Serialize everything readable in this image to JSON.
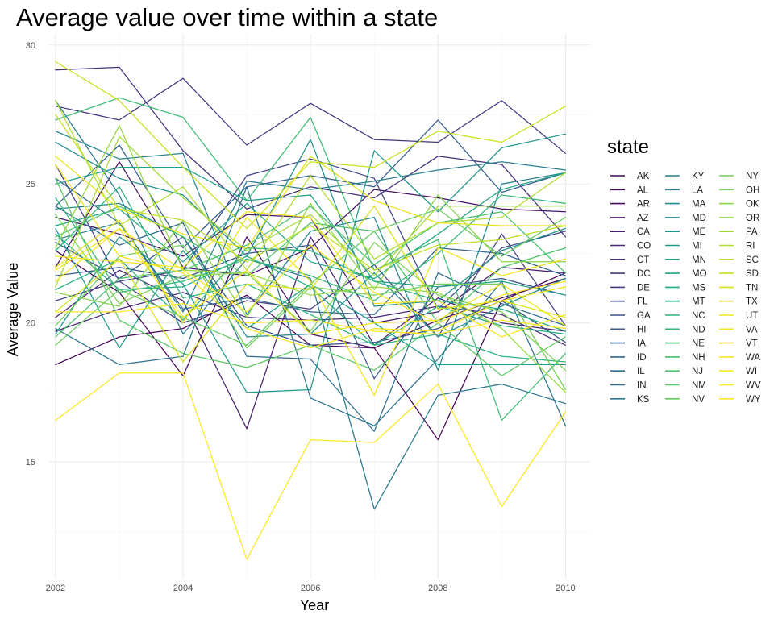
{
  "chart_data": {
    "type": "line",
    "title": "Average value over time within a state",
    "xlabel": "Year",
    "ylabel": "Average Value",
    "x": [
      2002,
      2003,
      2004,
      2005,
      2006,
      2007,
      2008,
      2009,
      2010
    ],
    "xlim": [
      2001.9,
      2010.4
    ],
    "ylim": [
      10.8,
      30.4
    ],
    "x_ticks": [
      2002,
      2004,
      2006,
      2008,
      2010
    ],
    "y_ticks": [
      15,
      20,
      25,
      30
    ],
    "grid": true,
    "legend_title": "state",
    "legend_position": "right",
    "colormap": "viridis",
    "series": [
      {
        "name": "AK",
        "color": "#440154",
        "values": [
          18.5,
          19.5,
          19.8,
          21.0,
          19.2,
          19.1,
          15.8,
          20.8,
          21.8
        ]
      },
      {
        "name": "AL",
        "color": "#46085c",
        "values": [
          22.6,
          21.1,
          18.1,
          23.1,
          19.6,
          19.1,
          20.1,
          20.9,
          21.6
        ]
      },
      {
        "name": "AR",
        "color": "#471063",
        "values": [
          22.0,
          25.8,
          22.0,
          21.7,
          22.7,
          24.8,
          24.5,
          24.1,
          24.0
        ]
      },
      {
        "name": "AZ",
        "color": "#48186a",
        "values": [
          23.8,
          23.2,
          22.4,
          23.9,
          23.8,
          20.0,
          20.4,
          22.0,
          21.8
        ]
      },
      {
        "name": "CA",
        "color": "#482071",
        "values": [
          20.2,
          21.9,
          20.8,
          16.2,
          23.1,
          19.2,
          20.9,
          20.0,
          19.7
        ]
      },
      {
        "name": "CO",
        "color": "#472776",
        "values": [
          19.7,
          20.5,
          21.1,
          20.2,
          20.1,
          20.2,
          20.6,
          20.3,
          19.2
        ]
      },
      {
        "name": "CT",
        "color": "#462f7c",
        "values": [
          29.1,
          29.2,
          26.2,
          24.1,
          24.9,
          24.5,
          26.0,
          25.7,
          23.1
        ]
      },
      {
        "name": "DC",
        "color": "#443781",
        "values": [
          27.8,
          27.3,
          28.8,
          26.4,
          27.9,
          26.6,
          26.5,
          28.0,
          26.1
        ]
      },
      {
        "name": "DE",
        "color": "#423e85",
        "values": [
          25.7,
          21.5,
          20.0,
          20.8,
          20.5,
          22.1,
          19.5,
          23.2,
          19.9
        ]
      },
      {
        "name": "FL",
        "color": "#3f4788",
        "values": [
          20.8,
          21.5,
          21.9,
          25.3,
          25.9,
          25.2,
          20.5,
          22.7,
          23.3
        ]
      },
      {
        "name": "GA",
        "color": "#3c4f8a",
        "values": [
          22.9,
          21.6,
          23.1,
          19.9,
          19.2,
          19.3,
          19.8,
          20.8,
          19.3
        ]
      },
      {
        "name": "HI",
        "color": "#39558c",
        "values": [
          21.7,
          22.0,
          21.6,
          22.5,
          22.8,
          18.0,
          21.3,
          21.6,
          21.0
        ]
      },
      {
        "name": "IA",
        "color": "#355e8d",
        "values": [
          24.2,
          26.4,
          22.7,
          24.9,
          25.3,
          24.9,
          27.3,
          24.7,
          25.4
        ]
      },
      {
        "name": "ID",
        "color": "#32648e",
        "values": [
          25.2,
          23.6,
          20.5,
          20.9,
          20.4,
          20.3,
          22.7,
          22.5,
          21.7
        ]
      },
      {
        "name": "IL",
        "color": "#2f6b8e",
        "values": [
          24.2,
          22.8,
          23.6,
          18.8,
          18.7,
          16.1,
          21.8,
          20.7,
          19.9
        ]
      },
      {
        "name": "IN",
        "color": "#2c728e",
        "values": [
          19.8,
          18.5,
          18.8,
          24.9,
          17.3,
          16.3,
          18.7,
          21.5,
          16.3
        ]
      },
      {
        "name": "KS",
        "color": "#2a788e",
        "values": [
          28.0,
          24.6,
          19.6,
          22.3,
          21.6,
          13.3,
          17.4,
          17.8,
          17.1
        ]
      },
      {
        "name": "KY",
        "color": "#287d8e",
        "values": [
          23.0,
          23.6,
          20.4,
          25.1,
          24.8,
          25.1,
          25.5,
          25.8,
          25.5
        ]
      },
      {
        "name": "LA",
        "color": "#25848e",
        "values": [
          26.9,
          25.9,
          26.1,
          20.3,
          23.3,
          23.8,
          18.3,
          25.0,
          25.4
        ]
      },
      {
        "name": "MA",
        "color": "#238a8d",
        "values": [
          24.1,
          24.3,
          23.1,
          19.5,
          19.6,
          21.8,
          19.5,
          20.6,
          21.6
        ]
      },
      {
        "name": "MD",
        "color": "#21908d",
        "values": [
          26.5,
          25.2,
          24.6,
          22.4,
          26.6,
          20.6,
          20.8,
          22.6,
          23.4
        ]
      },
      {
        "name": "ME",
        "color": "#1f968b",
        "values": [
          19.6,
          23.1,
          21.4,
          17.5,
          17.6,
          26.2,
          24.0,
          26.3,
          26.8
        ]
      },
      {
        "name": "MI",
        "color": "#1f9a8a",
        "values": [
          23.4,
          19.1,
          22.6,
          19.8,
          21.4,
          20.0,
          18.5,
          18.5,
          18.5
        ]
      },
      {
        "name": "MN",
        "color": "#1fa088",
        "values": [
          25.0,
          25.6,
          25.6,
          24.4,
          24.6,
          21.5,
          21.3,
          21.5,
          21.0
        ]
      },
      {
        "name": "MO",
        "color": "#21a685",
        "values": [
          23.5,
          24.1,
          22.2,
          24.3,
          22.2,
          21.6,
          23.2,
          24.8,
          25.4
        ]
      },
      {
        "name": "MS",
        "color": "#24aa83",
        "values": [
          23.2,
          21.2,
          21.3,
          22.4,
          21.3,
          19.2,
          20.6,
          19.9,
          19.6
        ]
      },
      {
        "name": "MT",
        "color": "#28ae80",
        "values": [
          21.2,
          22.3,
          20.1,
          22.7,
          22.6,
          21.5,
          20.8,
          20.5,
          19.7
        ]
      },
      {
        "name": "NC",
        "color": "#2eb37c",
        "values": [
          22.6,
          24.9,
          20.9,
          21.4,
          20.3,
          19.2,
          19.6,
          18.8,
          18.6
        ]
      },
      {
        "name": "ND",
        "color": "#35b779",
        "values": [
          24.5,
          21.1,
          21.5,
          22.3,
          21.7,
          20.8,
          22.5,
          24.6,
          24.3
        ]
      },
      {
        "name": "NE",
        "color": "#3dbc74",
        "values": [
          27.3,
          28.1,
          27.4,
          24.4,
          27.4,
          21.9,
          23.0,
          16.5,
          18.9
        ]
      },
      {
        "name": "NH",
        "color": "#46c06f",
        "values": [
          19.5,
          21.6,
          21.9,
          22.8,
          24.2,
          22.1,
          23.6,
          24.0,
          21.8
        ]
      },
      {
        "name": "NJ",
        "color": "#50c46a",
        "values": [
          23.1,
          24.2,
          23.1,
          21.7,
          23.6,
          23.3,
          20.0,
          22.0,
          22.7
        ]
      },
      {
        "name": "NM",
        "color": "#5ac864",
        "values": [
          25.2,
          20.1,
          18.9,
          18.4,
          19.2,
          18.3,
          20.0,
          18.1,
          19.5
        ]
      },
      {
        "name": "NV",
        "color": "#65cb5e",
        "values": [
          19.2,
          21.2,
          20.2,
          19.2,
          21.4,
          23.3,
          24.1,
          22.4,
          23.8
        ]
      },
      {
        "name": "NY",
        "color": "#70cf57",
        "values": [
          19.9,
          22.4,
          22.8,
          19.1,
          21.3,
          21.0,
          21.4,
          21.4,
          17.6
        ]
      },
      {
        "name": "OH",
        "color": "#7cd250",
        "values": [
          23.9,
          20.7,
          21.7,
          21.8,
          19.7,
          22.9,
          21.0,
          20.4,
          18.3
        ]
      },
      {
        "name": "OK",
        "color": "#89d548",
        "values": [
          21.1,
          20.6,
          23.7,
          20.2,
          24.3,
          21.2,
          24.6,
          22.2,
          22.2
        ]
      },
      {
        "name": "OR",
        "color": "#95d840",
        "values": [
          22.7,
          27.1,
          21.9,
          21.8,
          21.0,
          21.3,
          21.1,
          19.8,
          17.5
        ]
      },
      {
        "name": "PA",
        "color": "#a2da37",
        "values": [
          21.3,
          26.7,
          24.5,
          22.6,
          23.9,
          21.7,
          24.2,
          24.2,
          24.2
        ]
      },
      {
        "name": "RI",
        "color": "#b0dd2f",
        "values": [
          28.0,
          23.5,
          24.9,
          21.9,
          25.3,
          22.3,
          23.6,
          23.8,
          25.4
        ]
      },
      {
        "name": "SC",
        "color": "#bddf26",
        "values": [
          27.5,
          24.1,
          23.7,
          22.2,
          23.5,
          21.9,
          22.8,
          23.0,
          23.5
        ]
      },
      {
        "name": "SD",
        "color": "#cae11f",
        "values": [
          29.4,
          28.0,
          25.6,
          23.4,
          25.8,
          25.6,
          26.9,
          26.5,
          27.8
        ]
      },
      {
        "name": "TN",
        "color": "#d8e219",
        "values": [
          20.4,
          22.3,
          18.6,
          21.4,
          21.2,
          24.2,
          20.5,
          20.8,
          20.2
        ]
      },
      {
        "name": "TX",
        "color": "#e5e419",
        "values": [
          26.0,
          24.1,
          23.2,
          22.7,
          26.0,
          24.4,
          23.6,
          23.5,
          23.5
        ]
      },
      {
        "name": "UT",
        "color": "#eee51c",
        "values": [
          22.0,
          23.7,
          20.0,
          23.8,
          21.5,
          17.4,
          22.7,
          21.7,
          22.3
        ]
      },
      {
        "name": "VA",
        "color": "#f1e51d",
        "values": [
          21.9,
          23.4,
          20.2,
          21.9,
          19.6,
          20.0,
          20.1,
          21.4,
          19.9
        ]
      },
      {
        "name": "VT",
        "color": "#f4e61e",
        "values": [
          22.4,
          22.2,
          22.0,
          24.0,
          23.8,
          20.7,
          20.8,
          19.5,
          20.3
        ]
      },
      {
        "name": "WA",
        "color": "#f8e621",
        "values": [
          25.7,
          22.4,
          21.8,
          19.8,
          19.1,
          19.8,
          19.7,
          20.8,
          21.3
        ]
      },
      {
        "name": "WI",
        "color": "#fbe722",
        "values": [
          16.5,
          18.2,
          18.2,
          11.5,
          15.8,
          15.7,
          17.8,
          13.4,
          16.8
        ]
      },
      {
        "name": "WV",
        "color": "#fde724",
        "values": [
          20.4,
          20.4,
          20.7,
          20.0,
          20.1,
          19.7,
          19.6,
          20.1,
          19.8
        ]
      },
      {
        "name": "WY",
        "color": "#fde725",
        "values": [
          21.5,
          23.4,
          21.9,
          20.4,
          22.8,
          21.1,
          20.0,
          21.0,
          21.5
        ]
      }
    ]
  }
}
